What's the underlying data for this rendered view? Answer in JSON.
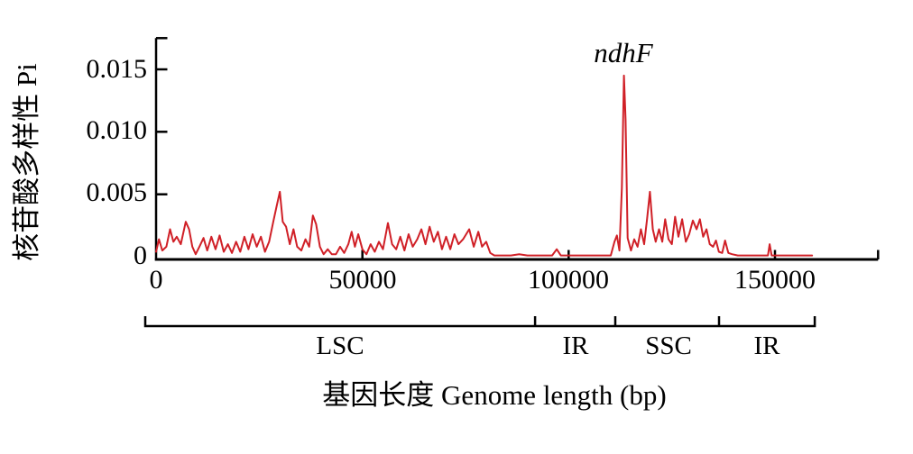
{
  "chart_data": {
    "type": "line",
    "title": "",
    "ylabel": "核苷酸多样性 Pi",
    "xlabel": "基因长度 Genome length (bp)",
    "line_color": "#d02027",
    "axis_color": "#000000",
    "grid": false,
    "legend_position": "none",
    "xlim": [
      0,
      175000
    ],
    "ylim": [
      0,
      0.0175
    ],
    "x_ticks": [
      0,
      50000,
      100000,
      150000
    ],
    "x_tick_labels": [
      "0",
      "50000",
      "100000",
      "150000"
    ],
    "y_ticks": [
      0,
      0.005,
      0.01,
      0.015
    ],
    "y_tick_labels": [
      "0",
      "0.005",
      "0.010",
      "0.015"
    ],
    "annotations": [
      {
        "text": "ndhF",
        "x": 113400,
        "y": 0.0155,
        "style": "italic"
      }
    ],
    "regions": [
      {
        "label": "LSC",
        "start": 0,
        "end": 91850
      },
      {
        "label": "IR",
        "start": 91850,
        "end": 111300
      },
      {
        "label": "SSC",
        "start": 111300,
        "end": 136450
      },
      {
        "label": "IR",
        "start": 136450,
        "end": 159650
      }
    ],
    "series": [
      {
        "name": "Pi",
        "points": [
          [
            0,
            0.0004
          ],
          [
            700,
            0.0014
          ],
          [
            1500,
            0.0005
          ],
          [
            2500,
            0.0008
          ],
          [
            3400,
            0.0022
          ],
          [
            4200,
            0.0012
          ],
          [
            5000,
            0.0016
          ],
          [
            6000,
            0.001
          ],
          [
            7200,
            0.0028
          ],
          [
            8000,
            0.0022
          ],
          [
            8800,
            0.0008
          ],
          [
            9600,
            0.0002
          ],
          [
            10500,
            0.0008
          ],
          [
            11500,
            0.0015
          ],
          [
            12400,
            0.0005
          ],
          [
            13400,
            0.0016
          ],
          [
            14400,
            0.0006
          ],
          [
            15400,
            0.0017
          ],
          [
            16400,
            0.0004
          ],
          [
            17400,
            0.001
          ],
          [
            18400,
            0.0003
          ],
          [
            19400,
            0.0012
          ],
          [
            20400,
            0.0004
          ],
          [
            21400,
            0.0016
          ],
          [
            22400,
            0.0006
          ],
          [
            23400,
            0.0018
          ],
          [
            24400,
            0.0008
          ],
          [
            25400,
            0.0016
          ],
          [
            26400,
            0.0004
          ],
          [
            27400,
            0.0012
          ],
          [
            28400,
            0.0028
          ],
          [
            29200,
            0.004
          ],
          [
            30000,
            0.0052
          ],
          [
            30700,
            0.0028
          ],
          [
            31500,
            0.0024
          ],
          [
            32400,
            0.001
          ],
          [
            33300,
            0.0022
          ],
          [
            34200,
            0.0008
          ],
          [
            35200,
            0.0005
          ],
          [
            36200,
            0.0014
          ],
          [
            37100,
            0.0008
          ],
          [
            38000,
            0.0033
          ],
          [
            38800,
            0.0026
          ],
          [
            39700,
            0.0008
          ],
          [
            40600,
            0.0002
          ],
          [
            41600,
            0.0006
          ],
          [
            42600,
            0.0002
          ],
          [
            43600,
            0.0002
          ],
          [
            44600,
            0.0008
          ],
          [
            45600,
            0.0003
          ],
          [
            46600,
            0.001
          ],
          [
            47400,
            0.002
          ],
          [
            48200,
            0.0008
          ],
          [
            49000,
            0.0018
          ],
          [
            50000,
            0.0006
          ],
          [
            51000,
            0.0002
          ],
          [
            52000,
            0.001
          ],
          [
            53000,
            0.0004
          ],
          [
            54000,
            0.0012
          ],
          [
            55000,
            0.0006
          ],
          [
            56200,
            0.0027
          ],
          [
            57200,
            0.001
          ],
          [
            58200,
            0.0006
          ],
          [
            59200,
            0.0016
          ],
          [
            60200,
            0.0005
          ],
          [
            61200,
            0.0018
          ],
          [
            62200,
            0.0008
          ],
          [
            63300,
            0.0014
          ],
          [
            64300,
            0.0022
          ],
          [
            65300,
            0.001
          ],
          [
            66300,
            0.0024
          ],
          [
            67300,
            0.0012
          ],
          [
            68300,
            0.002
          ],
          [
            69300,
            0.0006
          ],
          [
            70300,
            0.0016
          ],
          [
            71300,
            0.0006
          ],
          [
            72300,
            0.0018
          ],
          [
            73300,
            0.001
          ],
          [
            74400,
            0.0014
          ],
          [
            75900,
            0.0022
          ],
          [
            77000,
            0.0008
          ],
          [
            78100,
            0.002
          ],
          [
            79000,
            0.0008
          ],
          [
            80000,
            0.0012
          ],
          [
            81000,
            0.0003
          ],
          [
            82000,
            0.0001
          ],
          [
            84000,
            0.0001
          ],
          [
            86000,
            0.0001
          ],
          [
            88000,
            0.0002
          ],
          [
            90000,
            0.0001
          ],
          [
            92000,
            0.0001
          ],
          [
            94000,
            0.0001
          ],
          [
            96000,
            0.0001
          ],
          [
            97100,
            0.0006
          ],
          [
            98100,
            0.0001
          ],
          [
            100000,
            0.0001
          ],
          [
            102000,
            0.0001
          ],
          [
            104000,
            0.0001
          ],
          [
            106000,
            0.0001
          ],
          [
            108000,
            0.0001
          ],
          [
            110200,
            0.0001
          ],
          [
            111100,
            0.0012
          ],
          [
            111700,
            0.0017
          ],
          [
            112300,
            0.0005
          ],
          [
            112900,
            0.0055
          ],
          [
            113400,
            0.0145
          ],
          [
            113800,
            0.011
          ],
          [
            114300,
            0.0015
          ],
          [
            115100,
            0.0005
          ],
          [
            115900,
            0.0014
          ],
          [
            116700,
            0.0008
          ],
          [
            117500,
            0.0022
          ],
          [
            118300,
            0.001
          ],
          [
            119000,
            0.003
          ],
          [
            119700,
            0.0052
          ],
          [
            120400,
            0.0022
          ],
          [
            121100,
            0.0012
          ],
          [
            121900,
            0.0022
          ],
          [
            122700,
            0.0012
          ],
          [
            123400,
            0.003
          ],
          [
            124200,
            0.0014
          ],
          [
            125000,
            0.001
          ],
          [
            125800,
            0.0032
          ],
          [
            126600,
            0.0016
          ],
          [
            127500,
            0.003
          ],
          [
            128400,
            0.0012
          ],
          [
            129200,
            0.0018
          ],
          [
            130100,
            0.0029
          ],
          [
            131000,
            0.0022
          ],
          [
            131800,
            0.003
          ],
          [
            132600,
            0.0016
          ],
          [
            133400,
            0.0022
          ],
          [
            134200,
            0.001
          ],
          [
            135000,
            0.0008
          ],
          [
            135700,
            0.0013
          ],
          [
            136400,
            0.0004
          ],
          [
            137200,
            0.0003
          ],
          [
            137900,
            0.0013
          ],
          [
            138700,
            0.0003
          ],
          [
            139600,
            0.0002
          ],
          [
            141000,
            0.0001
          ],
          [
            143000,
            0.0001
          ],
          [
            145000,
            0.0001
          ],
          [
            147000,
            0.0001
          ],
          [
            148300,
            0.0001
          ],
          [
            148700,
            0.001
          ],
          [
            149200,
            0.0001
          ],
          [
            151000,
            0.0001
          ],
          [
            153000,
            0.0001
          ],
          [
            155000,
            0.0001
          ],
          [
            157000,
            0.0001
          ],
          [
            159000,
            0.0001
          ]
        ]
      }
    ]
  }
}
